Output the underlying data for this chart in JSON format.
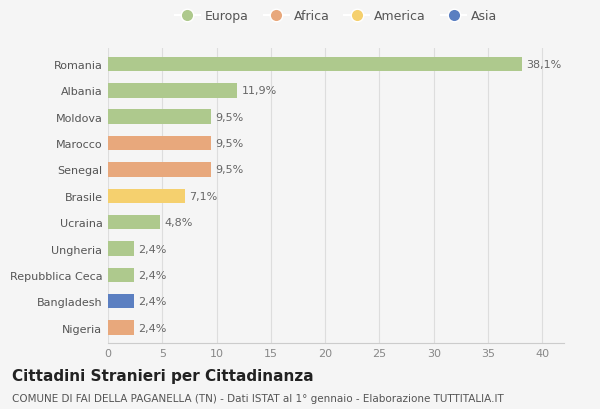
{
  "countries": [
    "Romania",
    "Albania",
    "Moldova",
    "Marocco",
    "Senegal",
    "Brasile",
    "Ucraina",
    "Ungheria",
    "Repubblica Ceca",
    "Bangladesh",
    "Nigeria"
  ],
  "values": [
    38.1,
    11.9,
    9.5,
    9.5,
    9.5,
    7.1,
    4.8,
    2.4,
    2.4,
    2.4,
    2.4
  ],
  "labels": [
    "38,1%",
    "11,9%",
    "9,5%",
    "9,5%",
    "9,5%",
    "7,1%",
    "4,8%",
    "2,4%",
    "2,4%",
    "2,4%",
    "2,4%"
  ],
  "continents": [
    "Europa",
    "Europa",
    "Europa",
    "Africa",
    "Africa",
    "America",
    "Europa",
    "Europa",
    "Europa",
    "Asia",
    "Africa"
  ],
  "colors": {
    "Europa": "#aec98d",
    "Africa": "#e8a87c",
    "America": "#f5d06e",
    "Asia": "#5b7fc1"
  },
  "legend_order": [
    "Europa",
    "Africa",
    "America",
    "Asia"
  ],
  "xlim": [
    0,
    42
  ],
  "xticks": [
    0,
    5,
    10,
    15,
    20,
    25,
    30,
    35,
    40
  ],
  "title": "Cittadini Stranieri per Cittadinanza",
  "subtitle": "COMUNE DI FAI DELLA PAGANELLA (TN) - Dati ISTAT al 1° gennaio - Elaborazione TUTTITALIA.IT",
  "bg_color": "#f5f5f5",
  "grid_color": "#dddddd",
  "bar_height": 0.55,
  "title_fontsize": 11,
  "subtitle_fontsize": 7.5,
  "label_fontsize": 8,
  "tick_fontsize": 8,
  "legend_fontsize": 9
}
